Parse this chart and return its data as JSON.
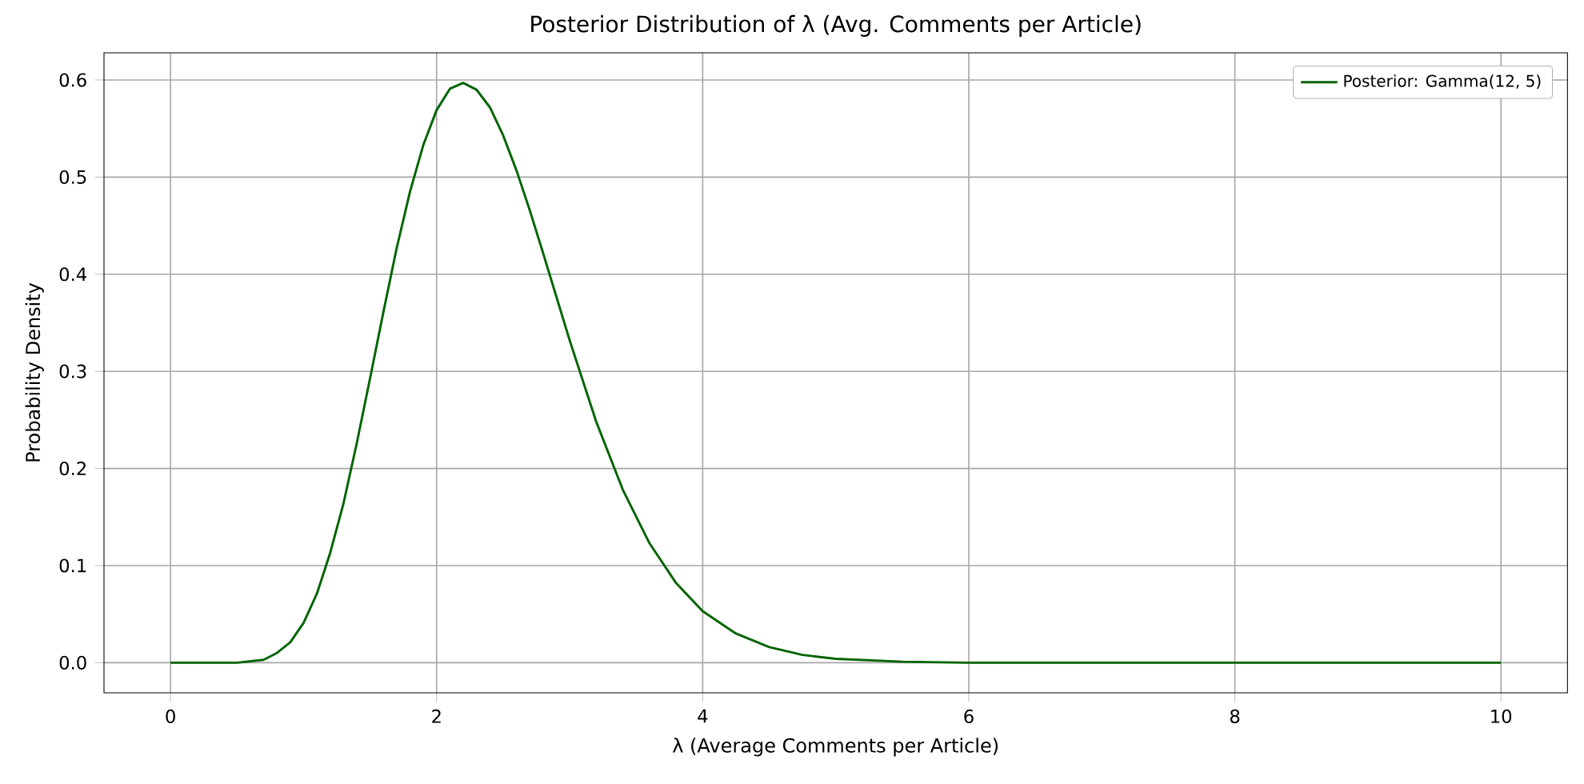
{
  "chart_data": {
    "type": "line",
    "title": "Posterior Distribution of λ (Avg. Comments per Article)",
    "xlabel": "λ (Average Comments per Article)",
    "ylabel": "Probability Density",
    "x": [
      0,
      0.3,
      0.5,
      0.7,
      0.8,
      0.9,
      1.0,
      1.1,
      1.2,
      1.3,
      1.4,
      1.5,
      1.6,
      1.7,
      1.8,
      1.9,
      2.0,
      2.1,
      2.2,
      2.3,
      2.4,
      2.5,
      2.6,
      2.7,
      2.8,
      2.9,
      3.0,
      3.2,
      3.4,
      3.6,
      3.8,
      4.0,
      4.25,
      4.5,
      4.75,
      5.0,
      5.5,
      6.0,
      7.0,
      8.0,
      9.0,
      10.0
    ],
    "series": [
      {
        "name": "Posterior: Gamma(12, 5)",
        "color": "#006400",
        "values": [
          0,
          0,
          0.0,
          0.003,
          0.01,
          0.021,
          0.041,
          0.071,
          0.113,
          0.164,
          0.226,
          0.293,
          0.361,
          0.427,
          0.485,
          0.533,
          0.569,
          0.591,
          0.597,
          0.59,
          0.572,
          0.543,
          0.507,
          0.466,
          0.422,
          0.377,
          0.332,
          0.248,
          0.178,
          0.123,
          0.082,
          0.053,
          0.03,
          0.016,
          0.008,
          0.004,
          0.001,
          0.0,
          0,
          0,
          0,
          0
        ]
      }
    ],
    "xlim": [
      -0.5,
      10.5
    ],
    "ylim": [
      -0.031,
      0.628
    ],
    "xticks": [
      0,
      2,
      4,
      6,
      8,
      10
    ],
    "yticks": [
      {
        "value": 0,
        "label": "0.0"
      },
      {
        "value": 0.1,
        "label": "0.1"
      },
      {
        "value": 0.2,
        "label": "0.2"
      },
      {
        "value": 0.3,
        "label": "0.3"
      },
      {
        "value": 0.4,
        "label": "0.4"
      },
      {
        "value": 0.5,
        "label": "0.5"
      },
      {
        "value": 0.6,
        "label": "0.6"
      }
    ],
    "grid": true,
    "legend": "top right"
  }
}
